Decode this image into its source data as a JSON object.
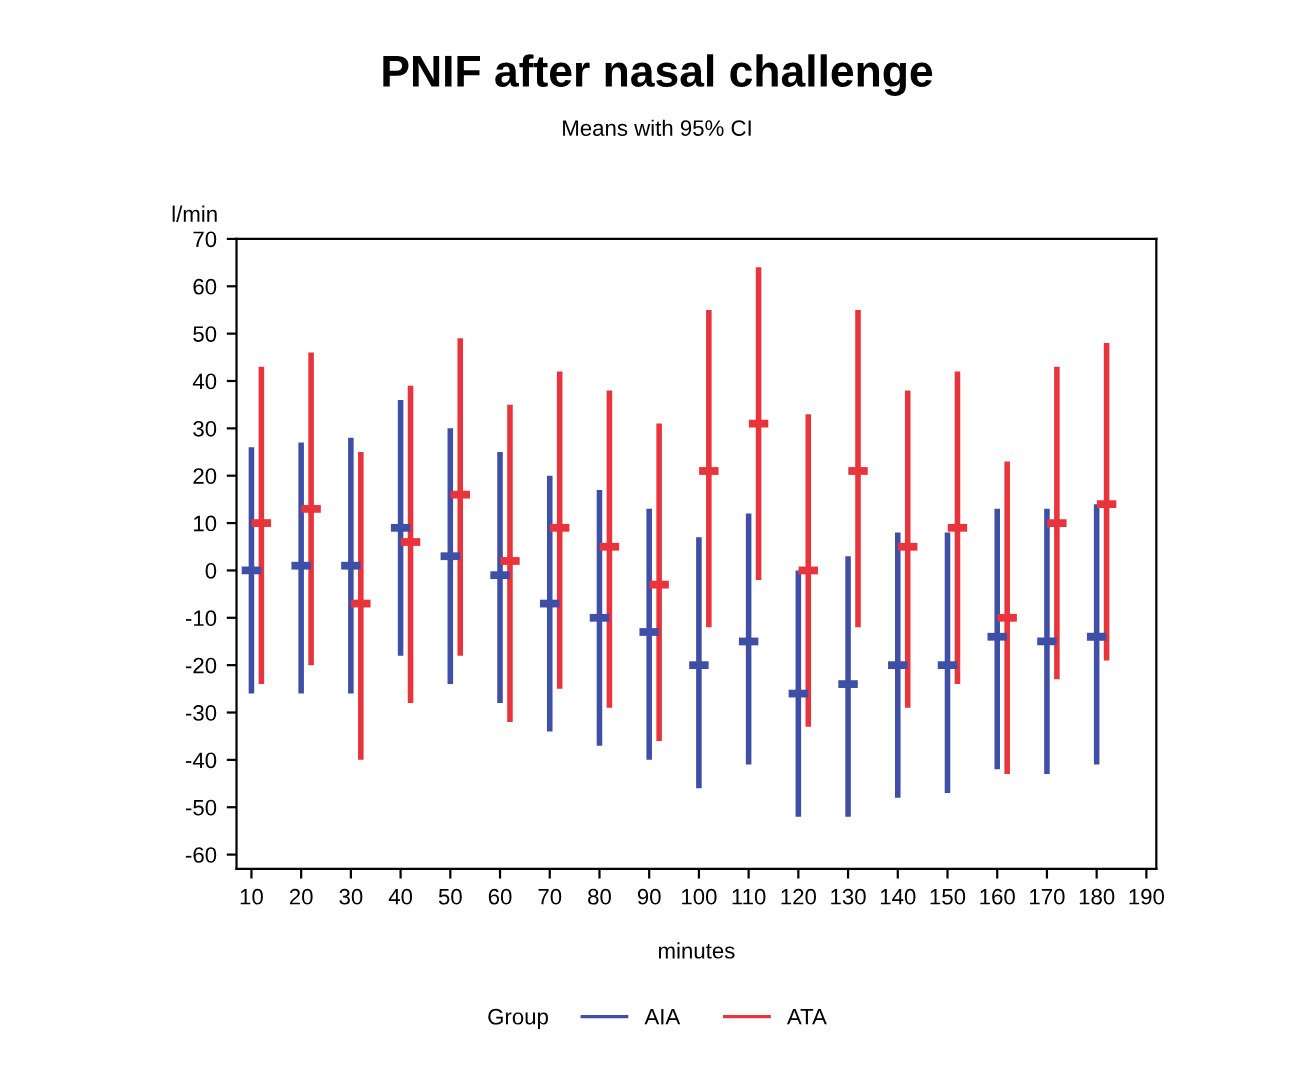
{
  "chart_data": {
    "type": "scatter",
    "title": "PNIF after nasal challenge",
    "subtitle": "Means with 95% CI",
    "xlabel": "minutes",
    "ylabel": "l/min",
    "legend_title": "Group",
    "legend": "bottom",
    "grid": false,
    "marker": "square",
    "xlim": [
      7,
      192
    ],
    "xticks": [
      10,
      20,
      30,
      40,
      50,
      60,
      70,
      80,
      90,
      100,
      110,
      120,
      130,
      140,
      150,
      160,
      170,
      180,
      190
    ],
    "ylim": [
      -63,
      70
    ],
    "yticks": [
      -60,
      -50,
      -40,
      -30,
      -20,
      -10,
      0,
      10,
      20,
      30,
      40,
      50,
      60,
      70
    ],
    "series": [
      {
        "name": "AIA",
        "color": "#3f4fa6",
        "x": [
          10,
          20,
          30,
          40,
          50,
          60,
          70,
          80,
          90,
          100,
          110,
          120,
          130,
          140,
          150,
          160,
          170,
          180
        ],
        "values": [
          0,
          1,
          1,
          9,
          3,
          -1,
          -7,
          -10,
          -13,
          -20,
          -15,
          -26,
          -24,
          -20,
          -20,
          -14,
          -15,
          -14
        ],
        "errors": [
          [
            -26,
            26
          ],
          [
            -26,
            27
          ],
          [
            -26,
            28
          ],
          [
            -18,
            36
          ],
          [
            -24,
            30
          ],
          [
            -28,
            25
          ],
          [
            -34,
            20
          ],
          [
            -37,
            17
          ],
          [
            -40,
            13
          ],
          [
            -46,
            7
          ],
          [
            -41,
            12
          ],
          [
            -52,
            0
          ],
          [
            -52,
            3
          ],
          [
            -48,
            8
          ],
          [
            -47,
            8
          ],
          [
            -42,
            13
          ],
          [
            -43,
            13
          ],
          [
            -41,
            14
          ]
        ]
      },
      {
        "name": "ATA",
        "color": "#e8343c",
        "x": [
          12,
          22,
          32,
          42,
          52,
          62,
          72,
          82,
          92,
          102,
          112,
          122,
          132,
          142,
          152,
          162,
          172,
          182
        ],
        "values": [
          10,
          13,
          -7,
          6,
          16,
          2,
          9,
          5,
          -3,
          21,
          31,
          0,
          21,
          5,
          9,
          -10,
          10,
          14
        ],
        "errors": [
          [
            -24,
            43
          ],
          [
            -20,
            46
          ],
          [
            -40,
            25
          ],
          [
            -28,
            39
          ],
          [
            -18,
            49
          ],
          [
            -32,
            35
          ],
          [
            -25,
            42
          ],
          [
            -29,
            38
          ],
          [
            -36,
            31
          ],
          [
            -12,
            55
          ],
          [
            -2,
            64
          ],
          [
            -33,
            33
          ],
          [
            -12,
            55
          ],
          [
            -29,
            38
          ],
          [
            -24,
            42
          ],
          [
            -43,
            23
          ],
          [
            -23,
            43
          ],
          [
            -19,
            48
          ]
        ]
      }
    ]
  }
}
